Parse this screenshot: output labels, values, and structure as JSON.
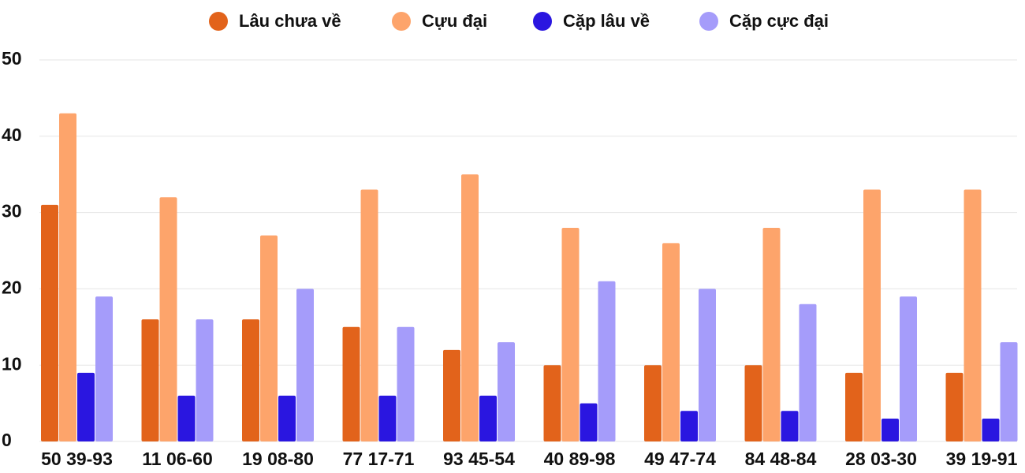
{
  "chart_data": {
    "type": "bar",
    "categories": [
      "50 39-93",
      "11 06-60",
      "19 08-80",
      "77 17-71",
      "93 45-54",
      "40 89-98",
      "49 47-74",
      "84 48-84",
      "28 03-30",
      "39 19-91"
    ],
    "series": [
      {
        "name": "Lâu chưa về",
        "color": "#e2631b",
        "values": [
          31,
          16,
          16,
          15,
          12,
          10,
          10,
          10,
          9,
          9
        ]
      },
      {
        "name": "Cựu đại",
        "color": "#fda46b",
        "values": [
          43,
          32,
          27,
          33,
          35,
          28,
          26,
          28,
          33,
          33
        ]
      },
      {
        "name": "Cặp lâu về",
        "color": "#2a16e0",
        "values": [
          9,
          6,
          6,
          6,
          6,
          5,
          4,
          4,
          3,
          3
        ]
      },
      {
        "name": "Cặp cực đại",
        "color": "#a59cfa",
        "values": [
          19,
          16,
          20,
          15,
          13,
          21,
          20,
          18,
          19,
          13
        ]
      }
    ],
    "ylim": [
      0,
      50
    ],
    "yticks": [
      0,
      10,
      20,
      30,
      40,
      50
    ],
    "grid": true,
    "legend": "top"
  }
}
